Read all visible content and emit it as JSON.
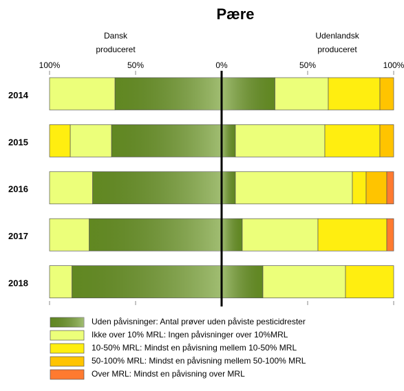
{
  "chart_data": {
    "type": "butterfly_stacked_bar",
    "title": "Pære",
    "left_label": [
      "Dansk",
      "produceret"
    ],
    "right_label": [
      "Udenlandsk",
      "produceret"
    ],
    "categories": [
      "2014",
      "2015",
      "2016",
      "2017",
      "2018"
    ],
    "xlim": [
      -100,
      100
    ],
    "xticks": [
      {
        "value": -100,
        "label": "100%"
      },
      {
        "value": -50,
        "label": "50%"
      },
      {
        "value": 0,
        "label": "0%"
      },
      {
        "value": 50,
        "label": "50%"
      },
      {
        "value": 100,
        "label": "100%"
      }
    ],
    "series": [
      {
        "name": "Uden påvisninger: Antal prøver uden påviste pesticidrester",
        "color": "#6e9a26",
        "dansk": [
          62,
          64,
          75,
          77,
          87
        ],
        "udenlandsk": [
          31,
          8,
          8,
          12,
          24
        ]
      },
      {
        "name": "Ikke over 10% MRL: Ingen påvisninger over 10%MRL",
        "color": "#ecff7a",
        "dansk": [
          38,
          24,
          25,
          23,
          13
        ],
        "udenlandsk": [
          31,
          52,
          68,
          44,
          48
        ]
      },
      {
        "name": "10-50% MRL: Mindst en påvisning mellem 10-50% MRL",
        "color": "#ffee10",
        "dansk": [
          0,
          12,
          0,
          0,
          0
        ],
        "udenlandsk": [
          30,
          32,
          8,
          40,
          28
        ]
      },
      {
        "name": "50-100% MRL: Mindst en påvisning mellem 50-100% MRL",
        "color": "#ffc400",
        "dansk": [
          0,
          0,
          0,
          0,
          0
        ],
        "udenlandsk": [
          8,
          8,
          12,
          0,
          0
        ]
      },
      {
        "name": "Over MRL:  Mindst en påvisning over MRL",
        "color": "#ff7a30",
        "dansk": [
          0,
          0,
          0,
          0,
          0
        ],
        "udenlandsk": [
          0,
          0,
          4,
          4,
          0
        ]
      }
    ]
  }
}
